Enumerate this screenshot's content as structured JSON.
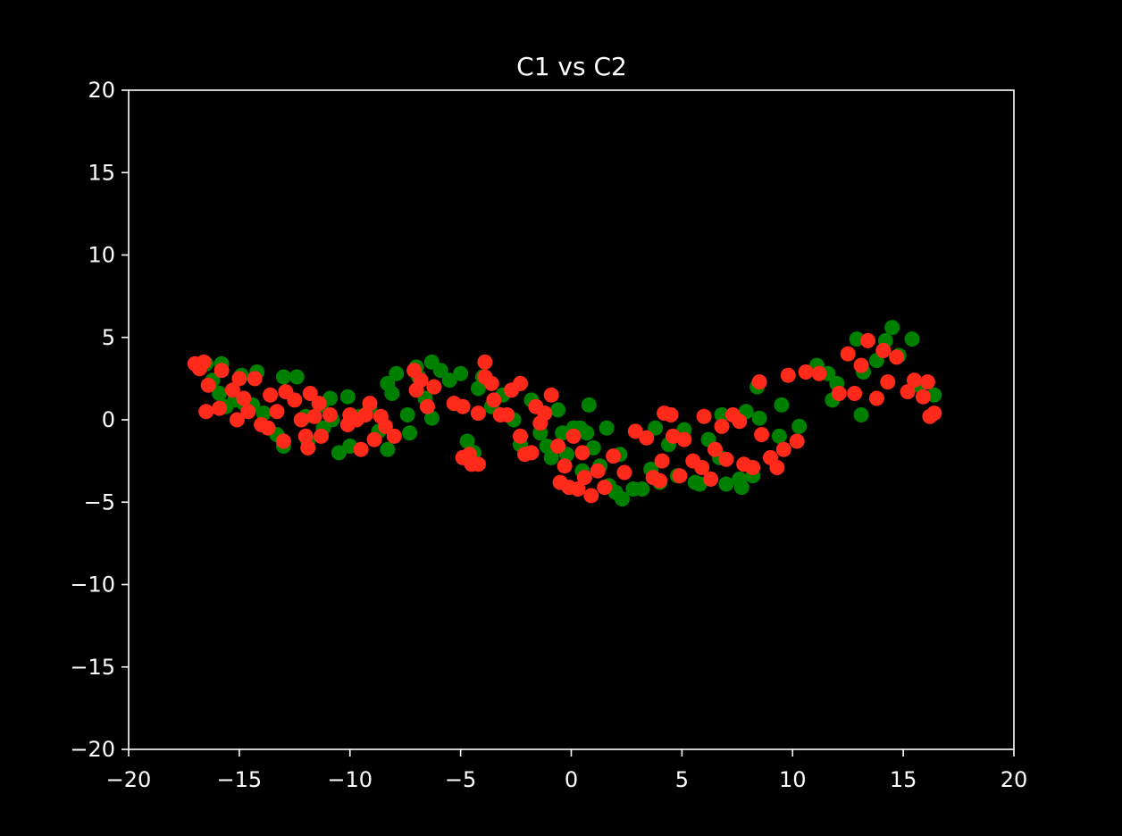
{
  "chart_data": {
    "type": "scatter",
    "title": "C1 vs C2",
    "xlabel": "",
    "ylabel": "",
    "xlim": [
      -20,
      20
    ],
    "ylim": [
      -20,
      20
    ],
    "x_ticks": [
      -20,
      -15,
      -10,
      -5,
      0,
      5,
      10,
      15,
      20
    ],
    "y_ticks": [
      -20,
      -15,
      -10,
      -5,
      0,
      5,
      10,
      15,
      20
    ],
    "x_tick_labels": [
      "−20",
      "−15",
      "−10",
      "−5",
      "0",
      "5",
      "10",
      "15",
      "20"
    ],
    "y_tick_labels": [
      "−20",
      "−15",
      "−10",
      "−5",
      "0",
      "5",
      "10",
      "15",
      "20"
    ],
    "grid": false,
    "background": "#000000",
    "series": [
      {
        "color": "#008000",
        "points": [
          [
            -16.5,
            3.4
          ],
          [
            -16.2,
            2.4
          ],
          [
            -15.8,
            3.4
          ],
          [
            -15.9,
            1.6
          ],
          [
            -15.6,
            0.8
          ],
          [
            -15.2,
            1.2
          ],
          [
            -14.9,
            2.7
          ],
          [
            -14.8,
            1.0
          ],
          [
            -14.2,
            2.9
          ],
          [
            -14.4,
            0.9
          ],
          [
            -13.9,
            0.4
          ],
          [
            -13.3,
            -0.9
          ],
          [
            -13.0,
            2.6
          ],
          [
            -13.0,
            -1.6
          ],
          [
            -12.4,
            2.6
          ],
          [
            -12.0,
            0.2
          ],
          [
            -11.9,
            -1.3
          ],
          [
            -11.3,
            0.9
          ],
          [
            -11.2,
            -0.5
          ],
          [
            -10.9,
            1.3
          ],
          [
            -10.8,
            0.0
          ],
          [
            -10.5,
            -2.0
          ],
          [
            -10.1,
            1.4
          ],
          [
            -10.0,
            -1.6
          ],
          [
            -9.6,
            0.2
          ],
          [
            -9.1,
            0.7
          ],
          [
            -8.7,
            -0.7
          ],
          [
            -8.3,
            -1.8
          ],
          [
            -8.3,
            2.2
          ],
          [
            -8.1,
            1.6
          ],
          [
            -7.9,
            2.8
          ],
          [
            -7.4,
            0.3
          ],
          [
            -7.3,
            -0.8
          ],
          [
            -7.0,
            3.2
          ],
          [
            -6.9,
            2.6
          ],
          [
            -6.6,
            1.3
          ],
          [
            -6.3,
            3.5
          ],
          [
            -6.2,
            2.0
          ],
          [
            -6.3,
            0.1
          ],
          [
            -5.9,
            3.0
          ],
          [
            -5.5,
            2.4
          ],
          [
            -5.0,
            2.8
          ],
          [
            -4.7,
            -1.3
          ],
          [
            -4.4,
            -2.0
          ],
          [
            -4.2,
            1.9
          ],
          [
            -4.0,
            2.6
          ],
          [
            -3.6,
            0.8
          ],
          [
            -3.1,
            1.5
          ],
          [
            -2.6,
            0.0
          ],
          [
            -2.3,
            -1.5
          ],
          [
            -1.8,
            1.2
          ],
          [
            -1.4,
            -0.8
          ],
          [
            -1.1,
            -1.6
          ],
          [
            -0.9,
            -2.3
          ],
          [
            -0.6,
            0.6
          ],
          [
            -0.4,
            -0.8
          ],
          [
            -0.2,
            -2.1
          ],
          [
            0.1,
            -0.5
          ],
          [
            0.4,
            -0.5
          ],
          [
            0.5,
            -3.1
          ],
          [
            0.7,
            -0.8
          ],
          [
            0.8,
            0.9
          ],
          [
            1.0,
            -1.7
          ],
          [
            1.3,
            -2.8
          ],
          [
            1.6,
            -0.5
          ],
          [
            1.7,
            -4.0
          ],
          [
            2.0,
            -4.4
          ],
          [
            2.2,
            -2.1
          ],
          [
            2.3,
            -4.8
          ],
          [
            2.8,
            -4.2
          ],
          [
            3.2,
            -4.2
          ],
          [
            3.6,
            -3.0
          ],
          [
            3.8,
            -0.5
          ],
          [
            4.0,
            -3.8
          ],
          [
            4.4,
            -1.5
          ],
          [
            4.8,
            -3.4
          ],
          [
            5.1,
            -0.6
          ],
          [
            5.6,
            -3.8
          ],
          [
            5.8,
            -3.9
          ],
          [
            6.2,
            -1.2
          ],
          [
            6.7,
            -2.3
          ],
          [
            6.8,
            0.3
          ],
          [
            7.0,
            -3.9
          ],
          [
            7.6,
            -3.6
          ],
          [
            7.7,
            -4.1
          ],
          [
            7.9,
            0.5
          ],
          [
            8.2,
            -3.4
          ],
          [
            8.4,
            2.0
          ],
          [
            8.5,
            0.1
          ],
          [
            9.4,
            -1.0
          ],
          [
            9.5,
            0.9
          ],
          [
            10.3,
            -0.4
          ],
          [
            11.1,
            3.3
          ],
          [
            11.6,
            2.8
          ],
          [
            11.8,
            1.2
          ],
          [
            12.0,
            2.2
          ],
          [
            12.9,
            4.9
          ],
          [
            13.1,
            0.3
          ],
          [
            13.2,
            2.9
          ],
          [
            13.8,
            3.6
          ],
          [
            14.2,
            4.8
          ],
          [
            14.5,
            5.6
          ],
          [
            14.8,
            3.9
          ],
          [
            15.4,
            4.9
          ],
          [
            15.7,
            2.1
          ],
          [
            16.4,
            1.5
          ]
        ]
      },
      {
        "color": "#ff2a1a",
        "points": [
          [
            -17.0,
            3.4
          ],
          [
            -16.8,
            3.1
          ],
          [
            -16.6,
            3.5
          ],
          [
            -16.4,
            2.1
          ],
          [
            -16.5,
            0.5
          ],
          [
            -15.9,
            0.7
          ],
          [
            -15.8,
            3.0
          ],
          [
            -15.3,
            1.8
          ],
          [
            -15.1,
            0.0
          ],
          [
            -15.0,
            2.5
          ],
          [
            -14.8,
            1.3
          ],
          [
            -14.6,
            0.5
          ],
          [
            -14.3,
            2.5
          ],
          [
            -14.0,
            -0.3
          ],
          [
            -13.7,
            -0.5
          ],
          [
            -13.6,
            1.5
          ],
          [
            -13.3,
            0.5
          ],
          [
            -13.0,
            -1.3
          ],
          [
            -12.9,
            1.7
          ],
          [
            -12.5,
            1.2
          ],
          [
            -12.2,
            0.0
          ],
          [
            -12.0,
            -1.0
          ],
          [
            -11.9,
            -1.7
          ],
          [
            -11.8,
            1.6
          ],
          [
            -11.6,
            0.2
          ],
          [
            -11.4,
            1.0
          ],
          [
            -11.3,
            -1.0
          ],
          [
            -10.9,
            0.3
          ],
          [
            -10.1,
            -0.3
          ],
          [
            -10.0,
            0.3
          ],
          [
            -9.7,
            0.0
          ],
          [
            -9.5,
            -1.8
          ],
          [
            -9.3,
            0.3
          ],
          [
            -9.1,
            1.0
          ],
          [
            -8.9,
            -1.2
          ],
          [
            -8.6,
            0.2
          ],
          [
            -8.4,
            -0.4
          ],
          [
            -8.0,
            -1.0
          ],
          [
            -7.1,
            3.0
          ],
          [
            -7.0,
            1.8
          ],
          [
            -6.8,
            2.4
          ],
          [
            -6.5,
            0.8
          ],
          [
            -6.2,
            2.0
          ],
          [
            -5.3,
            1.0
          ],
          [
            -4.9,
            0.8
          ],
          [
            -4.9,
            -2.3
          ],
          [
            -4.6,
            -2.1
          ],
          [
            -4.5,
            -2.7
          ],
          [
            -4.2,
            -2.7
          ],
          [
            -4.2,
            0.4
          ],
          [
            -3.9,
            3.5
          ],
          [
            -3.9,
            2.6
          ],
          [
            -3.6,
            2.2
          ],
          [
            -3.5,
            1.2
          ],
          [
            -3.2,
            0.3
          ],
          [
            -2.9,
            0.3
          ],
          [
            -2.7,
            1.8
          ],
          [
            -2.3,
            2.2
          ],
          [
            -2.3,
            -1.0
          ],
          [
            -2.1,
            -2.1
          ],
          [
            -1.8,
            -2.0
          ],
          [
            -1.6,
            0.8
          ],
          [
            -1.4,
            -0.2
          ],
          [
            -1.2,
            0.4
          ],
          [
            -0.9,
            1.5
          ],
          [
            -0.6,
            -1.6
          ],
          [
            -0.5,
            -3.8
          ],
          [
            -0.3,
            -2.8
          ],
          [
            -0.1,
            -4.1
          ],
          [
            0.1,
            -1.0
          ],
          [
            0.3,
            -4.2
          ],
          [
            0.5,
            -2.0
          ],
          [
            0.6,
            -3.5
          ],
          [
            0.9,
            -4.6
          ],
          [
            1.2,
            -3.1
          ],
          [
            1.5,
            -4.1
          ],
          [
            1.9,
            -2.2
          ],
          [
            2.4,
            -3.2
          ],
          [
            2.9,
            -0.7
          ],
          [
            3.4,
            -1.1
          ],
          [
            3.7,
            -3.5
          ],
          [
            4.0,
            -3.7
          ],
          [
            4.1,
            -2.5
          ],
          [
            4.2,
            0.4
          ],
          [
            4.5,
            0.3
          ],
          [
            4.6,
            -1.0
          ],
          [
            4.9,
            -3.4
          ],
          [
            5.1,
            -1.2
          ],
          [
            5.5,
            -2.5
          ],
          [
            5.9,
            -2.9
          ],
          [
            6.0,
            0.2
          ],
          [
            6.3,
            -3.6
          ],
          [
            6.5,
            -1.8
          ],
          [
            6.8,
            -0.4
          ],
          [
            7.0,
            -2.4
          ],
          [
            7.3,
            0.3
          ],
          [
            7.6,
            -0.1
          ],
          [
            7.8,
            -2.7
          ],
          [
            8.2,
            -2.9
          ],
          [
            8.5,
            2.3
          ],
          [
            8.6,
            -0.9
          ],
          [
            9.0,
            -2.3
          ],
          [
            9.3,
            -2.9
          ],
          [
            9.6,
            -1.8
          ],
          [
            9.8,
            2.7
          ],
          [
            10.2,
            -1.3
          ],
          [
            10.6,
            2.9
          ],
          [
            11.2,
            2.8
          ],
          [
            12.1,
            1.6
          ],
          [
            12.5,
            4.0
          ],
          [
            12.8,
            1.6
          ],
          [
            13.1,
            3.3
          ],
          [
            13.4,
            4.8
          ],
          [
            13.8,
            1.3
          ],
          [
            14.1,
            4.2
          ],
          [
            14.3,
            2.3
          ],
          [
            14.7,
            3.8
          ],
          [
            15.2,
            1.7
          ],
          [
            15.5,
            2.4
          ],
          [
            15.9,
            1.4
          ],
          [
            16.1,
            2.3
          ],
          [
            16.2,
            0.2
          ],
          [
            16.4,
            0.4
          ]
        ]
      }
    ]
  }
}
